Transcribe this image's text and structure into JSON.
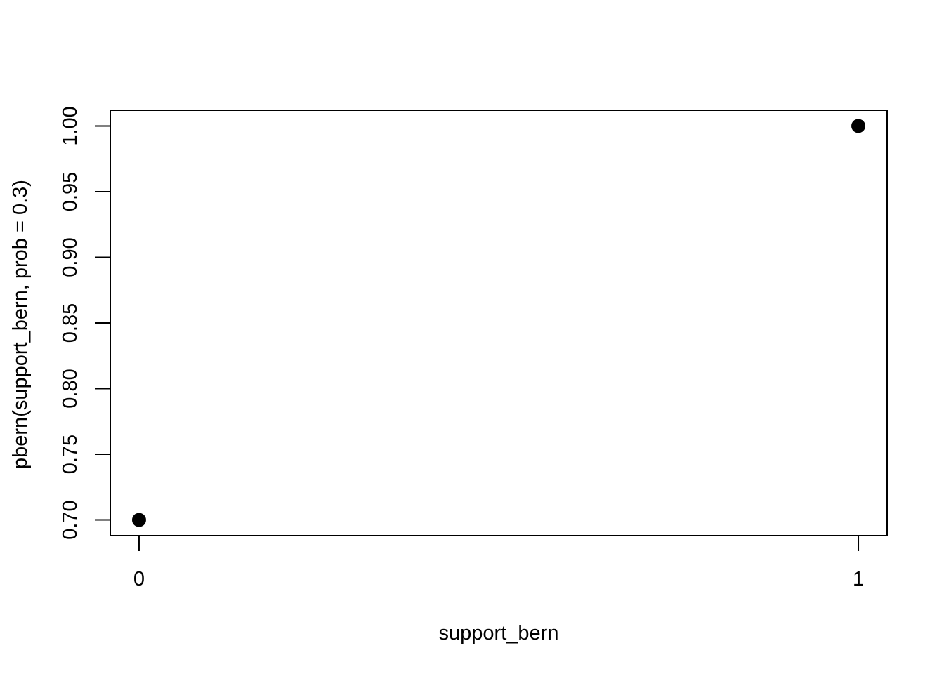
{
  "chart_data": {
    "type": "scatter",
    "title": "",
    "xlabel": "support_bern",
    "ylabel": "pbern(support_bern, prob = 0.3)",
    "points": [
      {
        "x": 0,
        "y": 0.7
      },
      {
        "x": 1,
        "y": 1.0
      }
    ],
    "xlim": [
      -0.04,
      1.04
    ],
    "ylim": [
      0.688,
      1.012
    ],
    "x_ticks": [
      {
        "value": 0,
        "label": "0"
      },
      {
        "value": 1,
        "label": "1"
      }
    ],
    "y_ticks": [
      {
        "value": 0.7,
        "label": "0.70"
      },
      {
        "value": 0.75,
        "label": "0.75"
      },
      {
        "value": 0.8,
        "label": "0.80"
      },
      {
        "value": 0.85,
        "label": "0.85"
      },
      {
        "value": 0.9,
        "label": "0.90"
      },
      {
        "value": 0.95,
        "label": "0.95"
      },
      {
        "value": 1.0,
        "label": "1.00"
      }
    ],
    "grid": false,
    "legend": "none",
    "point_color": "#000000"
  }
}
